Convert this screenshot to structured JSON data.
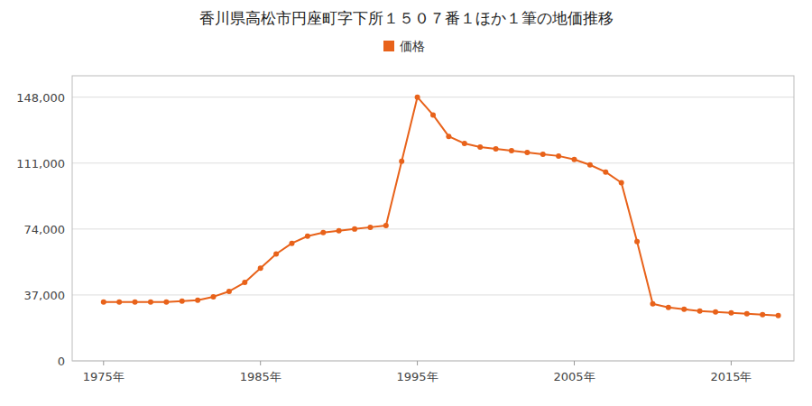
{
  "chart_data": {
    "type": "line",
    "title": "香川県高松市円座町字下所１５０７番１ほか１筆の地価推移",
    "x": [
      1975,
      1976,
      1977,
      1978,
      1979,
      1980,
      1981,
      1982,
      1983,
      1984,
      1985,
      1986,
      1987,
      1988,
      1989,
      1990,
      1991,
      1992,
      1993,
      1994,
      1995,
      1996,
      1997,
      1998,
      1999,
      2000,
      2001,
      2002,
      2003,
      2004,
      2005,
      2006,
      2007,
      2008,
      2009,
      2010,
      2011,
      2012,
      2013,
      2014,
      2015,
      2016,
      2017,
      2018
    ],
    "series": [
      {
        "name": "価格",
        "color": "#e8621a",
        "marker": "circle",
        "values": [
          33000,
          33000,
          33000,
          33000,
          33000,
          33500,
          34000,
          36000,
          39000,
          44000,
          52000,
          60000,
          66000,
          70000,
          72000,
          73000,
          74000,
          75000,
          76000,
          112000,
          148000,
          138000,
          126000,
          122000,
          120000,
          119000,
          118000,
          117000,
          116000,
          115000,
          113000,
          110000,
          106000,
          100000,
          67000,
          32000,
          30000,
          29000,
          28000,
          27500,
          27000,
          26500,
          26000,
          25500
        ]
      }
    ],
    "xlim": [
      1973,
      2019
    ],
    "xticks": [
      {
        "value": 1975,
        "label": "1975年"
      },
      {
        "value": 1985,
        "label": "1985年"
      },
      {
        "value": 1995,
        "label": "1995年"
      },
      {
        "value": 2005,
        "label": "2005年"
      },
      {
        "value": 2015,
        "label": "2015年"
      }
    ],
    "ylim": [
      0,
      160000
    ],
    "yticks": [
      0,
      {
        "value": 37000,
        "label": "37,000"
      },
      {
        "value": 74000,
        "label": "74,000"
      },
      {
        "value": 111000,
        "label": "111,000"
      },
      {
        "value": 148000,
        "label": "148,000"
      }
    ],
    "grid": true,
    "legend": "top"
  }
}
